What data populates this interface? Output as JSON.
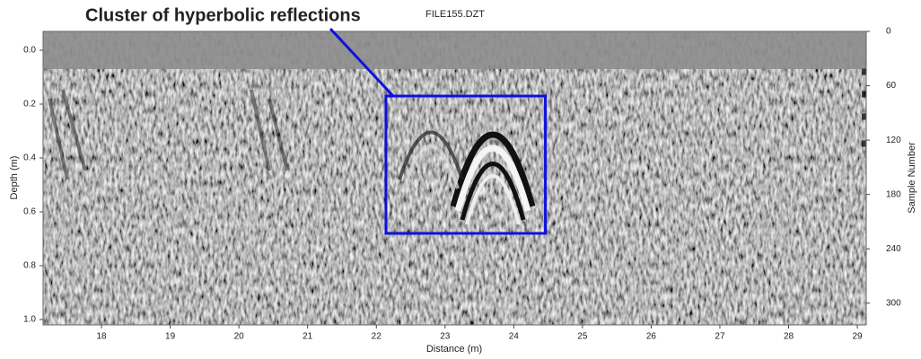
{
  "chart_data": {
    "type": "radargram",
    "title": "FILE155.DZT",
    "annotation": {
      "text": "Cluster of hyperbolic reflections",
      "box": {
        "x": [
          22.14,
          24.46
        ],
        "y": [
          0.17,
          0.68
        ]
      },
      "color": "#1010e0"
    },
    "xlabel": "Distance (m)",
    "ylabel": "Depth (m)",
    "y2label": "Sample Number",
    "xlim": [
      17.15,
      29.13
    ],
    "xticks": [
      18,
      19,
      20,
      21,
      22,
      23,
      24,
      25,
      26,
      27,
      28,
      29
    ],
    "ylim": [
      -0.07,
      1.02
    ],
    "y_inverted": true,
    "yticks": [
      {
        "value": 0,
        "label": "0.0"
      },
      0.2,
      0.4,
      0.6,
      0.8,
      {
        "value": 1,
        "label": "1.0"
      }
    ],
    "y2lim": [
      0,
      324
    ],
    "y2ticks": [
      0,
      60,
      120,
      180,
      240,
      300
    ]
  }
}
